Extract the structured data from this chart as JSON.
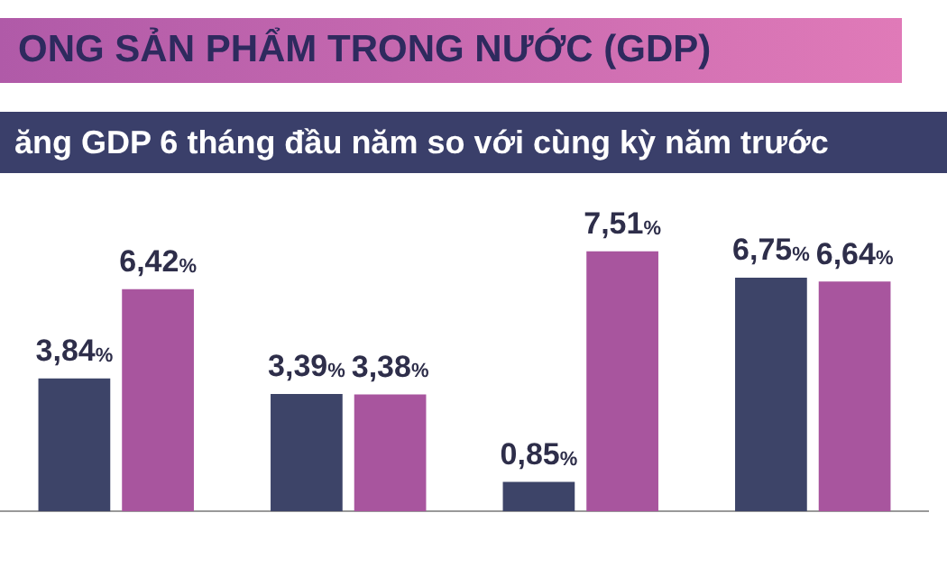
{
  "chart_data": {
    "type": "bar",
    "title": "ONG SẢN PHẨM TRONG NƯỚC (GDP)",
    "subtitle": "ăng GDP 6 tháng đầu năm so với cùng kỳ năm trước",
    "categories": [
      null,
      null,
      null,
      null
    ],
    "series": [
      {
        "color": "#3d4468",
        "values": [
          3.84,
          3.39,
          0.85,
          6.75
        ],
        "value_labels": [
          "3,84%",
          "3,39%",
          "0,85%",
          "6,75%"
        ]
      },
      {
        "color": "#a8559e",
        "values": [
          6.42,
          3.38,
          7.51,
          6.64
        ],
        "value_labels": [
          "6,42%",
          "3,38%",
          "7,51%",
          "6,64%"
        ]
      }
    ],
    "grid": false,
    "legend": false
  }
}
